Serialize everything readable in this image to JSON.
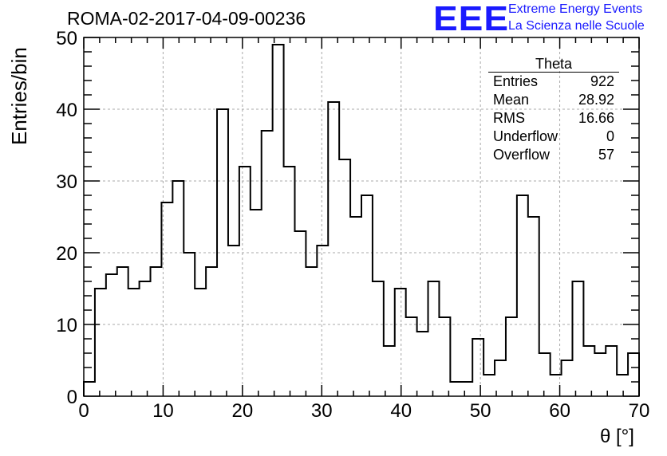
{
  "header": {
    "run_title": "ROMA-02-2017-04-09-00236",
    "logo_text": "EEE",
    "logo_line1": "Extreme Energy Events",
    "logo_line2": "La Scienza nelle Scuole",
    "logo_color": "#1a1aff"
  },
  "stats": {
    "title": "Theta",
    "rows": [
      {
        "label": "Entries",
        "value": "922"
      },
      {
        "label": "Mean",
        "value": "28.92"
      },
      {
        "label": "RMS",
        "value": "16.66"
      },
      {
        "label": "Underflow",
        "value": "0"
      },
      {
        "label": "Overflow",
        "value": "57"
      }
    ]
  },
  "chart_data": {
    "type": "bar",
    "style": "step-histogram",
    "xlabel": "θ [°]",
    "ylabel": "Entries/bin",
    "xlim": [
      0,
      70
    ],
    "ylim": [
      0,
      50
    ],
    "bin_width": 1.4,
    "xticks": [
      0,
      10,
      20,
      30,
      40,
      50,
      60,
      70
    ],
    "yticks": [
      0,
      10,
      20,
      30,
      40,
      50
    ],
    "grid": true,
    "values": [
      2,
      15,
      17,
      18,
      15,
      16,
      18,
      27,
      30,
      20,
      15,
      18,
      40,
      21,
      32,
      26,
      37,
      49,
      32,
      23,
      18,
      21,
      41,
      33,
      25,
      28,
      16,
      7,
      15,
      11,
      9,
      16,
      11,
      2,
      2,
      8,
      3,
      5,
      11,
      28,
      25,
      6,
      3,
      5,
      16,
      7,
      6,
      7,
      3,
      6
    ]
  }
}
